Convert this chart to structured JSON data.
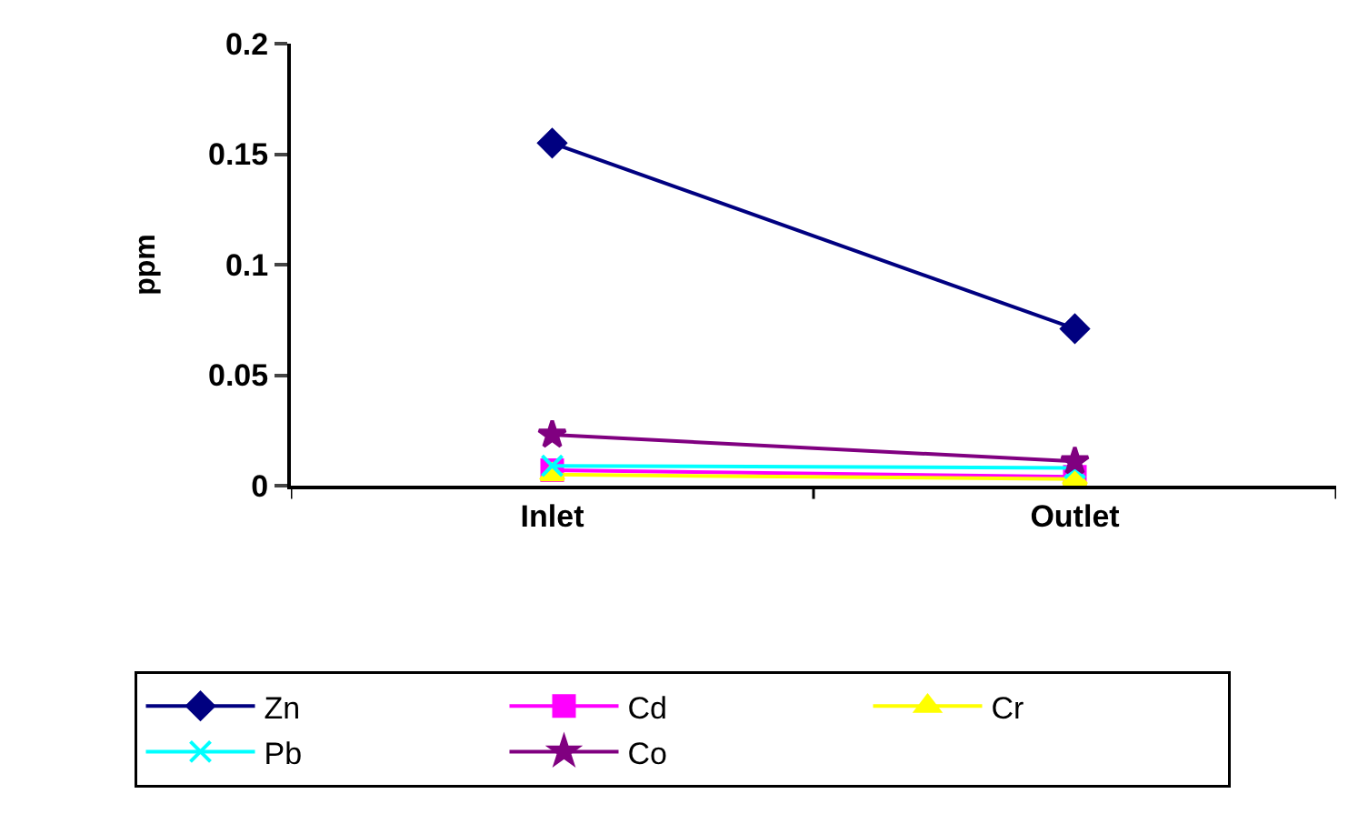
{
  "chart_data": {
    "type": "line",
    "ylabel": "ppm",
    "categories": [
      "Inlet",
      "Outlet"
    ],
    "ylim": [
      0,
      0.2
    ],
    "yticks": [
      0,
      0.05,
      0.1,
      0.15,
      0.2
    ],
    "legend": "bottom",
    "series": [
      {
        "name": "Zn",
        "color": "#000080",
        "marker": "diamond",
        "values": [
          0.155,
          0.071
        ]
      },
      {
        "name": "Cd",
        "color": "#ff00ff",
        "marker": "square",
        "values": [
          0.007,
          0.004
        ]
      },
      {
        "name": "Cr",
        "color": "#ffff00",
        "marker": "triangle",
        "values": [
          0.005,
          0.003
        ]
      },
      {
        "name": "Pb",
        "color": "#00ffff",
        "marker": "cross",
        "values": [
          0.009,
          0.008
        ]
      },
      {
        "name": "Co",
        "color": "#800080",
        "marker": "star",
        "values": [
          0.023,
          0.011
        ]
      }
    ]
  }
}
